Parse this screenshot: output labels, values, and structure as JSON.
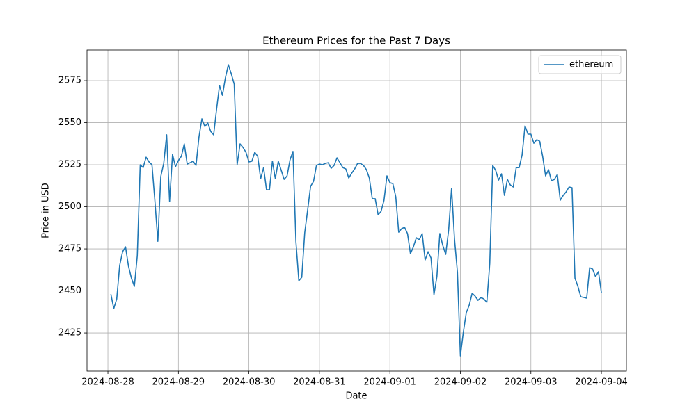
{
  "chart_data": {
    "type": "line",
    "title": "Ethereum Prices for the Past 7 Days",
    "x_label": "Date",
    "y_label": "Price in USD",
    "x": [
      "2024-08-28 01:00",
      "2024-08-28 02:00",
      "2024-08-28 03:00",
      "2024-08-28 04:00",
      "2024-08-28 05:00",
      "2024-08-28 06:00",
      "2024-08-28 07:00",
      "2024-08-28 08:00",
      "2024-08-28 09:00",
      "2024-08-28 10:00",
      "2024-08-28 11:00",
      "2024-08-28 12:00",
      "2024-08-28 13:00",
      "2024-08-28 14:00",
      "2024-08-28 15:00",
      "2024-08-28 16:00",
      "2024-08-28 17:00",
      "2024-08-28 18:00",
      "2024-08-28 19:00",
      "2024-08-28 20:00",
      "2024-08-28 21:00",
      "2024-08-28 22:00",
      "2024-08-28 23:00",
      "2024-08-29 00:00",
      "2024-08-29 01:00",
      "2024-08-29 02:00",
      "2024-08-29 03:00",
      "2024-08-29 04:00",
      "2024-08-29 05:00",
      "2024-08-29 06:00",
      "2024-08-29 07:00",
      "2024-08-29 08:00",
      "2024-08-29 09:00",
      "2024-08-29 10:00",
      "2024-08-29 11:00",
      "2024-08-29 12:00",
      "2024-08-29 13:00",
      "2024-08-29 14:00",
      "2024-08-29 15:00",
      "2024-08-29 16:00",
      "2024-08-29 17:00",
      "2024-08-29 18:00",
      "2024-08-29 19:00",
      "2024-08-29 20:00",
      "2024-08-29 21:00",
      "2024-08-29 22:00",
      "2024-08-29 23:00",
      "2024-08-30 00:00",
      "2024-08-30 01:00",
      "2024-08-30 02:00",
      "2024-08-30 03:00",
      "2024-08-30 04:00",
      "2024-08-30 05:00",
      "2024-08-30 06:00",
      "2024-08-30 07:00",
      "2024-08-30 08:00",
      "2024-08-30 09:00",
      "2024-08-30 10:00",
      "2024-08-30 11:00",
      "2024-08-30 12:00",
      "2024-08-30 13:00",
      "2024-08-30 14:00",
      "2024-08-30 15:00",
      "2024-08-30 16:00",
      "2024-08-30 17:00",
      "2024-08-30 18:00",
      "2024-08-30 19:00",
      "2024-08-30 20:00",
      "2024-08-30 21:00",
      "2024-08-30 22:00",
      "2024-08-30 23:00",
      "2024-08-31 00:00",
      "2024-08-31 01:00",
      "2024-08-31 02:00",
      "2024-08-31 03:00",
      "2024-08-31 04:00",
      "2024-08-31 05:00",
      "2024-08-31 06:00",
      "2024-08-31 07:00",
      "2024-08-31 08:00",
      "2024-08-31 09:00",
      "2024-08-31 10:00",
      "2024-08-31 11:00",
      "2024-08-31 12:00",
      "2024-08-31 13:00",
      "2024-08-31 14:00",
      "2024-08-31 15:00",
      "2024-08-31 16:00",
      "2024-08-31 17:00",
      "2024-08-31 18:00",
      "2024-08-31 19:00",
      "2024-08-31 20:00",
      "2024-08-31 21:00",
      "2024-08-31 22:00",
      "2024-08-31 23:00",
      "2024-09-01 00:00",
      "2024-09-01 01:00",
      "2024-09-01 02:00",
      "2024-09-01 03:00",
      "2024-09-01 04:00",
      "2024-09-01 05:00",
      "2024-09-01 06:00",
      "2024-09-01 07:00",
      "2024-09-01 08:00",
      "2024-09-01 09:00",
      "2024-09-01 10:00",
      "2024-09-01 11:00",
      "2024-09-01 12:00",
      "2024-09-01 13:00",
      "2024-09-01 14:00",
      "2024-09-01 15:00",
      "2024-09-01 16:00",
      "2024-09-01 17:00",
      "2024-09-01 18:00",
      "2024-09-01 19:00",
      "2024-09-01 20:00",
      "2024-09-01 21:00",
      "2024-09-01 22:00",
      "2024-09-01 23:00",
      "2024-09-02 00:00",
      "2024-09-02 01:00",
      "2024-09-02 02:00",
      "2024-09-02 03:00",
      "2024-09-02 04:00",
      "2024-09-02 05:00",
      "2024-09-02 06:00",
      "2024-09-02 07:00",
      "2024-09-02 08:00",
      "2024-09-02 09:00",
      "2024-09-02 10:00",
      "2024-09-02 11:00",
      "2024-09-02 12:00",
      "2024-09-02 13:00",
      "2024-09-02 14:00",
      "2024-09-02 15:00",
      "2024-09-02 16:00",
      "2024-09-02 17:00",
      "2024-09-02 18:00",
      "2024-09-02 19:00",
      "2024-09-02 20:00",
      "2024-09-02 21:00",
      "2024-09-02 22:00",
      "2024-09-02 23:00",
      "2024-09-03 00:00",
      "2024-09-03 01:00",
      "2024-09-03 02:00",
      "2024-09-03 03:00",
      "2024-09-03 04:00",
      "2024-09-03 05:00",
      "2024-09-03 06:00",
      "2024-09-03 07:00",
      "2024-09-03 08:00",
      "2024-09-03 09:00",
      "2024-09-03 10:00",
      "2024-09-03 11:00",
      "2024-09-03 12:00",
      "2024-09-03 13:00",
      "2024-09-03 14:00",
      "2024-09-03 15:00",
      "2024-09-03 16:00",
      "2024-09-03 17:00",
      "2024-09-03 18:00",
      "2024-09-03 19:00",
      "2024-09-03 20:00",
      "2024-09-03 21:00",
      "2024-09-03 22:00",
      "2024-09-03 23:00",
      "2024-09-04 00:00"
    ],
    "series": [
      {
        "name": "ethereum",
        "color": "#1f77b4",
        "values": [
          2448.1,
          2439.5,
          2445.2,
          2465.1,
          2473.3,
          2476.2,
          2464.7,
          2457.6,
          2452.7,
          2470.9,
          2525.0,
          2523.3,
          2529.5,
          2526.7,
          2525.0,
          2503.5,
          2479.5,
          2518.0,
          2525.8,
          2542.8,
          2503.1,
          2531.2,
          2523.8,
          2527.5,
          2530.0,
          2537.4,
          2525.4,
          2526.2,
          2527.1,
          2524.6,
          2541.5,
          2552.3,
          2547.7,
          2549.8,
          2544.8,
          2542.8,
          2558.1,
          2572.1,
          2566.3,
          2576.7,
          2584.5,
          2579.1,
          2572.9,
          2525.0,
          2537.4,
          2535.3,
          2532.4,
          2526.7,
          2527.1,
          2532.4,
          2530.0,
          2516.7,
          2523.3,
          2510.1,
          2510.1,
          2527.1,
          2516.7,
          2527.1,
          2521.7,
          2516.3,
          2518.4,
          2527.9,
          2532.9,
          2479.5,
          2456.0,
          2458.1,
          2484.5,
          2498.1,
          2512.2,
          2515.1,
          2524.6,
          2525.4,
          2525.0,
          2525.8,
          2526.2,
          2522.9,
          2524.6,
          2529.1,
          2526.2,
          2523.3,
          2522.5,
          2517.1,
          2520.0,
          2522.5,
          2525.8,
          2525.8,
          2524.6,
          2522.1,
          2517.1,
          2504.8,
          2504.8,
          2495.2,
          2497.3,
          2503.9,
          2518.4,
          2514.3,
          2513.8,
          2506.0,
          2484.9,
          2487.0,
          2487.8,
          2484.1,
          2472.1,
          2476.2,
          2481.6,
          2480.4,
          2484.1,
          2468.4,
          2473.3,
          2469.6,
          2447.7,
          2458.5,
          2484.1,
          2477.1,
          2471.7,
          2486.2,
          2511.0,
          2480.8,
          2461.0,
          2411.4,
          2425.4,
          2437.0,
          2441.5,
          2448.6,
          2446.9,
          2444.4,
          2446.1,
          2445.2,
          2443.2,
          2466.3,
          2524.6,
          2521.7,
          2515.9,
          2519.6,
          2506.8,
          2516.3,
          2513.0,
          2511.8,
          2523.3,
          2523.3,
          2530.8,
          2548.1,
          2543.2,
          2543.2,
          2537.8,
          2539.9,
          2539.0,
          2530.0,
          2518.4,
          2522.1,
          2515.5,
          2516.3,
          2519.2,
          2503.9,
          2506.8,
          2508.9,
          2511.8,
          2511.4,
          2457.6,
          2452.7,
          2446.5,
          2446.1,
          2445.7,
          2463.8,
          2463.0,
          2458.5,
          2461.4,
          2449.0
        ]
      }
    ],
    "xlim": [
      "2024-08-27 16:53",
      "2024-09-04 08:31"
    ],
    "xticks": [
      "2024-08-28",
      "2024-08-29",
      "2024-08-30",
      "2024-08-31",
      "2024-09-01",
      "2024-09-02",
      "2024-09-03",
      "2024-09-04"
    ],
    "ylim": [
      2402.3,
      2593.2
    ],
    "yticks": [
      2425,
      2450,
      2475,
      2500,
      2525,
      2550,
      2575
    ],
    "grid": true,
    "legend": "upper right"
  }
}
